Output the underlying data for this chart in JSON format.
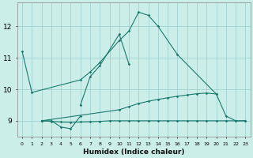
{
  "xlabel": "Humidex (Indice chaleur)",
  "background_color": "#cceee8",
  "grid_color": "#99cccc",
  "line_color": "#1a7a6e",
  "xlim": [
    -0.5,
    23.5
  ],
  "ylim": [
    8.5,
    12.75
  ],
  "xticks": [
    0,
    1,
    2,
    3,
    4,
    5,
    6,
    7,
    8,
    9,
    10,
    11,
    12,
    13,
    14,
    15,
    16,
    17,
    18,
    19,
    20,
    21,
    22,
    23
  ],
  "yticks": [
    9,
    10,
    11,
    12
  ],
  "line1_x": [
    0,
    1,
    6,
    7,
    8,
    10,
    11,
    12,
    13,
    14,
    16,
    20
  ],
  "line1_y": [
    11.2,
    9.9,
    10.3,
    10.55,
    10.85,
    11.55,
    11.85,
    12.45,
    12.35,
    12.0,
    11.1,
    9.85
  ],
  "line2_x": [
    6,
    7,
    8,
    10,
    11
  ],
  "line2_y": [
    9.5,
    10.4,
    10.75,
    11.75,
    10.8
  ],
  "line3_x": [
    2,
    3,
    4,
    5,
    6
  ],
  "line3_y": [
    9.0,
    9.0,
    8.8,
    8.75,
    9.15
  ],
  "line4_x": [
    2,
    10,
    11,
    12,
    13,
    14,
    15,
    16,
    17,
    18,
    19,
    20,
    21,
    22,
    23
  ],
  "line4_y": [
    9.0,
    9.35,
    9.45,
    9.55,
    9.62,
    9.68,
    9.73,
    9.78,
    9.82,
    9.86,
    9.88,
    9.85,
    9.15,
    9.0,
    9.0
  ],
  "line5_x": [
    2,
    3,
    4,
    5,
    6,
    7,
    8,
    9,
    10,
    11,
    12,
    13,
    14,
    15,
    16,
    17,
    18,
    19,
    20,
    21,
    22,
    23
  ],
  "line5_y": [
    9.0,
    8.98,
    8.96,
    8.95,
    8.96,
    8.97,
    8.98,
    9.0,
    9.0,
    9.0,
    9.0,
    9.0,
    9.0,
    9.0,
    9.0,
    9.0,
    9.0,
    9.0,
    9.0,
    9.0,
    9.0,
    9.0
  ]
}
